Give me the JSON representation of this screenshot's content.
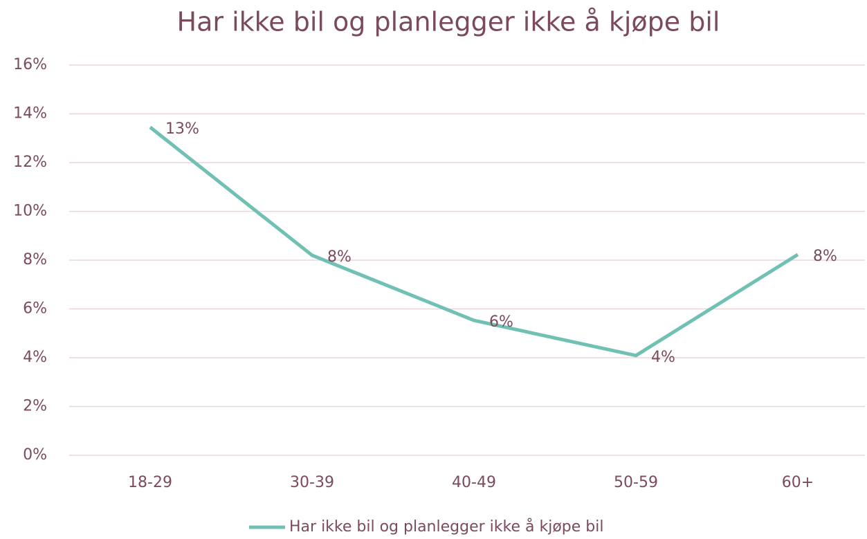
{
  "chart_data": {
    "type": "line",
    "title": "Har ikke bil og planlegger ikke å kjøpe bil",
    "categories": [
      "18-29",
      "30-39",
      "40-49",
      "50-59",
      "60+"
    ],
    "series": [
      {
        "name": "Har ikke bil og planlegger ikke å kjøpe bil",
        "color": "#70c1b3",
        "values": [
          13.45,
          8.2,
          5.53,
          4.09,
          8.23
        ],
        "value_labels": [
          "13%",
          "8%",
          "6%",
          "4%",
          "8%"
        ]
      }
    ],
    "ylim": [
      0,
      16
    ],
    "yticks": [
      {
        "value": 0,
        "label": "0%"
      },
      {
        "value": 2,
        "label": "2%"
      },
      {
        "value": 4,
        "label": "4%"
      },
      {
        "value": 6,
        "label": "6%"
      },
      {
        "value": 8,
        "label": "8%"
      },
      {
        "value": 10,
        "label": "10%"
      },
      {
        "value": 12,
        "label": "12%"
      },
      {
        "value": 14,
        "label": "14%"
      },
      {
        "value": 16,
        "label": "16%"
      }
    ],
    "grid": true,
    "legend": "bottom"
  }
}
